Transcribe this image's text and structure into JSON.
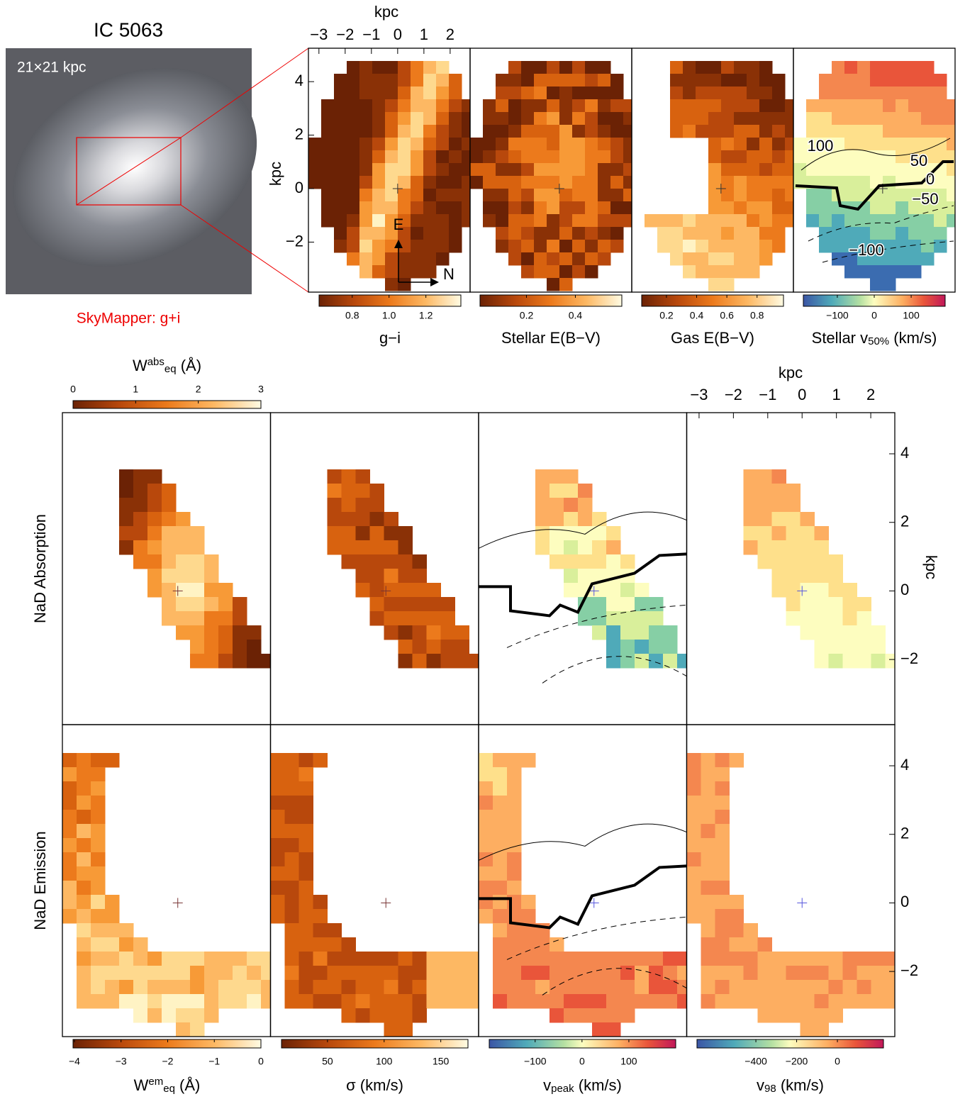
{
  "header": {
    "title": "IC 5063",
    "image_label": "21×21 kpc",
    "caption": "SkyMapper: g+i"
  },
  "top_axes": {
    "xlabel": "kpc",
    "ylabel": "kpc",
    "xlim": [
      -3.4,
      2.76
    ],
    "ylim": [
      -3.87,
      5.25
    ],
    "xticks": [
      {
        "value": -3,
        "label": "−3"
      },
      {
        "value": -2,
        "label": "−2"
      },
      {
        "value": -1,
        "label": "−1"
      },
      0,
      1,
      2
    ],
    "yticks": [
      4,
      2,
      0,
      {
        "value": -2,
        "label": "−2"
      }
    ],
    "compass": [
      "E",
      "N"
    ]
  },
  "top_panels": [
    {
      "label": [
        {
          "text": "g−i"
        }
      ],
      "range": [
        0.62,
        1.39
      ],
      "ticks": [
        0.8,
        {
          "value": 1.0,
          "label": "1.0"
        },
        1.2
      ]
    },
    {
      "label": [
        {
          "text": "Stellar E(B−V)"
        }
      ],
      "range": [
        0.01,
        0.59
      ],
      "ticks": [
        0.2,
        0.4
      ]
    },
    {
      "label": [
        {
          "text": "Gas E(B−V)"
        }
      ],
      "range": [
        0.036,
        0.975
      ],
      "ticks": [
        0.2,
        0.4,
        0.6,
        0.8
      ]
    },
    {
      "label": [
        {
          "text": "Stellar v"
        },
        {
          "text": "50%",
          "pos": "sub"
        },
        {
          "text": " (km/s)"
        }
      ],
      "range": [
        -192,
        192
      ],
      "ticks": [
        {
          "value": -100,
          "label": "−100"
        },
        0,
        100
      ],
      "contour_labels": [
        "100",
        "50",
        "0",
        "−50",
        "−100"
      ]
    }
  ],
  "bottom_axes": {
    "row_labels": [
      "NaD Absorption",
      "NaD Emission"
    ],
    "xlabel": "kpc",
    "ylabel": "kpc",
    "xlim": [
      -3.36,
      2.7
    ],
    "ylim": [
      -3.9,
      5.2
    ],
    "xticks": [
      {
        "value": -3,
        "label": "−3"
      },
      {
        "value": -2,
        "label": "−2"
      },
      {
        "value": -1,
        "label": "−1"
      },
      0,
      1,
      2
    ],
    "yticks": [
      4,
      2,
      0,
      {
        "value": -2,
        "label": "−2"
      }
    ]
  },
  "absorption_colorbar": {
    "label": [
      {
        "text": "W"
      },
      {
        "text": "abs",
        "pos": "sup"
      },
      {
        "text": "eq",
        "pos": "sub"
      },
      {
        "text": " (Å)"
      }
    ],
    "range": [
      0,
      3
    ],
    "ticks": [
      0,
      1,
      2,
      3
    ]
  },
  "bottom_colorbars": [
    {
      "label": [
        {
          "text": "W"
        },
        {
          "text": "em",
          "pos": "sup"
        },
        {
          "text": "eq",
          "pos": "sub"
        },
        {
          "text": " (Å)"
        }
      ],
      "range": [
        -4.03,
        0
      ],
      "ticks": [
        {
          "value": -4,
          "label": "−4"
        },
        {
          "value": -3,
          "label": "−3"
        },
        {
          "value": -2,
          "label": "−2"
        },
        {
          "value": -1,
          "label": "−1"
        },
        0
      ]
    },
    {
      "label": [
        {
          "text": "σ (km/s)"
        }
      ],
      "range": [
        9.4,
        174
      ],
      "ticks": [
        50,
        100,
        150
      ]
    },
    {
      "label": [
        {
          "text": "v"
        },
        {
          "text": "peak",
          "pos": "sub"
        },
        {
          "text": " (km/s)"
        }
      ],
      "range": [
        -198,
        200
      ],
      "ticks": [
        {
          "value": -100,
          "label": "−100"
        },
        0,
        100
      ]
    },
    {
      "label": [
        {
          "text": "v"
        },
        {
          "text": "98",
          "pos": "sub"
        },
        {
          "text": " (km/s)"
        }
      ],
      "range": [
        -689,
        226
      ],
      "ticks": [
        {
          "value": -400,
          "label": "−400"
        },
        {
          "value": -200,
          "label": "−200"
        },
        0
      ]
    }
  ]
}
